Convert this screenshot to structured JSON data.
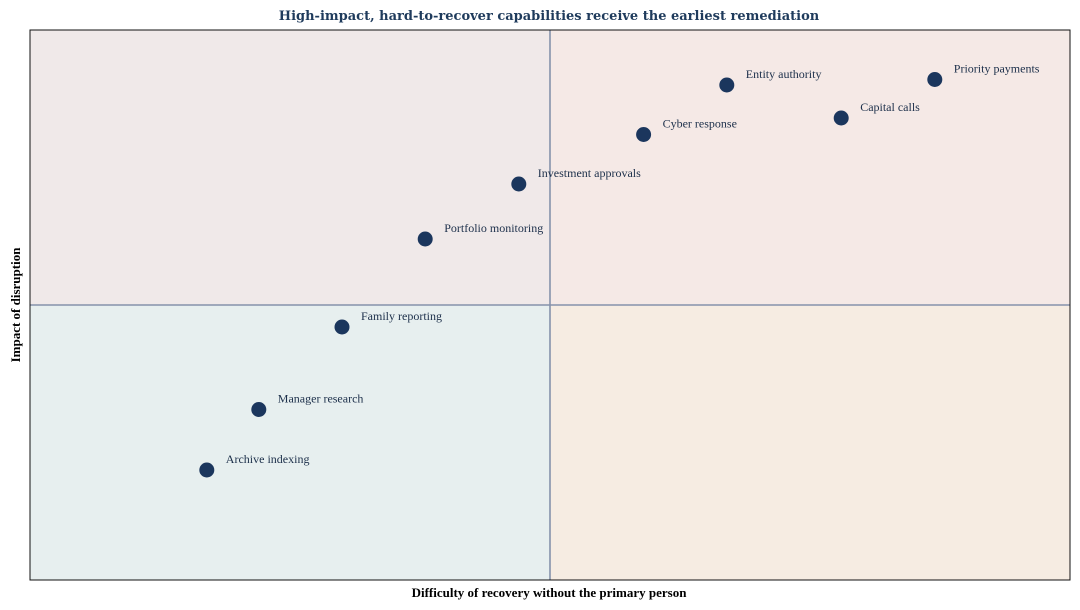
{
  "chart_data": {
    "type": "scatter",
    "title": "High-impact, hard-to-recover capabilities receive the earliest remediation",
    "xlabel": "Difficulty of recovery without the primary person",
    "ylabel": "Impact of disruption",
    "xlim": [
      0,
      10
    ],
    "ylim": [
      0,
      10
    ],
    "x_divider": 5,
    "y_divider": 5,
    "grid": false,
    "legend": "none",
    "quadrant_colors": {
      "top_left": "#f0e9e9",
      "top_right": "#f5e9e6",
      "bottom_left": "#e7efef",
      "bottom_right": "#f6ece2"
    },
    "marker_color": "#1b365d",
    "divider_color": "#8592ab",
    "points": [
      {
        "label": "Priority payments",
        "x": 8.7,
        "y": 9.1
      },
      {
        "label": "Entity authority",
        "x": 6.7,
        "y": 9.0
      },
      {
        "label": "Capital calls",
        "x": 7.8,
        "y": 8.4
      },
      {
        "label": "Cyber response",
        "x": 5.9,
        "y": 8.1
      },
      {
        "label": "Investment approvals",
        "x": 4.7,
        "y": 7.2
      },
      {
        "label": "Portfolio monitoring",
        "x": 3.8,
        "y": 6.2
      },
      {
        "label": "Family reporting",
        "x": 3.0,
        "y": 4.6
      },
      {
        "label": "Manager research",
        "x": 2.2,
        "y": 3.1
      },
      {
        "label": "Archive indexing",
        "x": 1.7,
        "y": 2.0
      }
    ]
  }
}
